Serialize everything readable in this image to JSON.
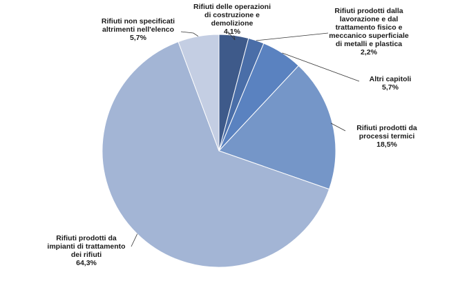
{
  "chart_data": {
    "type": "pie",
    "title": "",
    "slices": [
      {
        "name": "Rifiuti delle operazioni\ndi costruzione e\ndemolizione",
        "value": 4.1,
        "label": "4,1%",
        "color": "#3e5a8a"
      },
      {
        "name": "Rifiuti prodotti dalla\nlavorazione e dal\ntrattamento fisico e\nmeccanico superficiale\ndi metalli e plastica",
        "value": 2.2,
        "label": "2,2%",
        "color": "#4a6ea8"
      },
      {
        "name": "Altri capitoli",
        "value": 5.7,
        "label": "5,7%",
        "color": "#5a82c0"
      },
      {
        "name": "Rifiuti prodotti da\nprocessi termici",
        "value": 18.5,
        "label": "18,5%",
        "color": "#7596c8"
      },
      {
        "name": "Rifiuti prodotti da\nimpianti di trattamento\ndei rifiuti",
        "value": 64.3,
        "label": "64,3%",
        "color": "#a3b5d5"
      },
      {
        "name": "Rifiuti non specificati\naltrimenti nell'elenco",
        "value": 5.7,
        "label": "5,7%",
        "color": "#c4cee3"
      }
    ],
    "start_angle_deg": 0,
    "direction": "clockwise"
  }
}
